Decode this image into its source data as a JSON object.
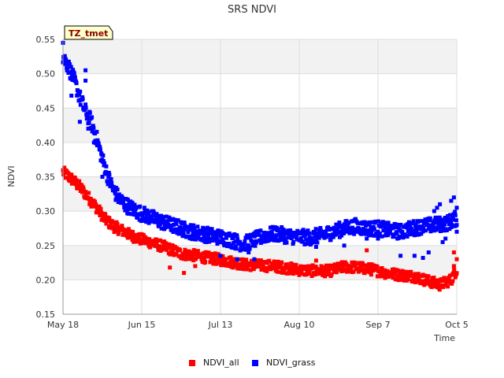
{
  "chart_data": {
    "type": "scatter",
    "title": "SRS NDVI",
    "xlabel": "Time",
    "ylabel": "NDVI",
    "ylim": [
      0.15,
      0.55
    ],
    "xlim": [
      0,
      140
    ],
    "yticks": [
      0.15,
      0.2,
      0.25,
      0.3,
      0.35,
      0.4,
      0.45,
      0.5,
      0.55
    ],
    "ytick_labels": [
      "0.15",
      "0.20",
      "0.25",
      "0.30",
      "0.35",
      "0.40",
      "0.45",
      "0.50",
      "0.55"
    ],
    "xticks": [
      {
        "day": 0,
        "label": "May 18"
      },
      {
        "day": 28,
        "label": "Jun 15"
      },
      {
        "day": 56,
        "label": "Jul 13"
      },
      {
        "day": 84,
        "label": "Aug 10"
      },
      {
        "day": 112,
        "label": "Sep 7"
      },
      {
        "day": 140,
        "label": "Oct 5"
      }
    ],
    "grid": true,
    "legend_position": "bottom-center",
    "badge": "TZ_tmet",
    "series": [
      {
        "name": "NDVI_all",
        "color": "#ff0000",
        "trend": [
          [
            0,
            0.357
          ],
          [
            3,
            0.347
          ],
          [
            6,
            0.335
          ],
          [
            9,
            0.32
          ],
          [
            12,
            0.305
          ],
          [
            15,
            0.288
          ],
          [
            18,
            0.278
          ],
          [
            21,
            0.272
          ],
          [
            24,
            0.265
          ],
          [
            27,
            0.26
          ],
          [
            30,
            0.256
          ],
          [
            33,
            0.252
          ],
          [
            36,
            0.248
          ],
          [
            39,
            0.243
          ],
          [
            42,
            0.238
          ],
          [
            46,
            0.236
          ],
          [
            50,
            0.233
          ],
          [
            55,
            0.23
          ],
          [
            60,
            0.226
          ],
          [
            65,
            0.222
          ],
          [
            70,
            0.221
          ],
          [
            75,
            0.22
          ],
          [
            80,
            0.217
          ],
          [
            85,
            0.214
          ],
          [
            90,
            0.213
          ],
          [
            95,
            0.213
          ],
          [
            100,
            0.219
          ],
          [
            105,
            0.218
          ],
          [
            110,
            0.215
          ],
          [
            115,
            0.21
          ],
          [
            120,
            0.207
          ],
          [
            125,
            0.205
          ],
          [
            130,
            0.198
          ],
          [
            134,
            0.193
          ],
          [
            138,
            0.2
          ],
          [
            140,
            0.215
          ]
        ],
        "spread": 0.008,
        "outliers": [
          [
            38,
            0.218
          ],
          [
            43,
            0.21
          ],
          [
            47,
            0.22
          ],
          [
            65,
            0.225
          ],
          [
            90,
            0.228
          ],
          [
            108,
            0.243
          ],
          [
            139,
            0.24
          ],
          [
            139,
            0.22
          ],
          [
            140,
            0.23
          ]
        ]
      },
      {
        "name": "NDVI_grass",
        "color": "#0000ff",
        "trend": [
          [
            0,
            0.525
          ],
          [
            2,
            0.51
          ],
          [
            4,
            0.49
          ],
          [
            6,
            0.465
          ],
          [
            8,
            0.445
          ],
          [
            10,
            0.43
          ],
          [
            12,
            0.405
          ],
          [
            14,
            0.375
          ],
          [
            16,
            0.35
          ],
          [
            18,
            0.33
          ],
          [
            20,
            0.318
          ],
          [
            22,
            0.31
          ],
          [
            24,
            0.305
          ],
          [
            27,
            0.298
          ],
          [
            30,
            0.293
          ],
          [
            33,
            0.288
          ],
          [
            36,
            0.283
          ],
          [
            40,
            0.278
          ],
          [
            44,
            0.272
          ],
          [
            48,
            0.268
          ],
          [
            52,
            0.265
          ],
          [
            56,
            0.262
          ],
          [
            60,
            0.258
          ],
          [
            64,
            0.252
          ],
          [
            68,
            0.258
          ],
          [
            72,
            0.265
          ],
          [
            76,
            0.267
          ],
          [
            80,
            0.264
          ],
          [
            84,
            0.262
          ],
          [
            88,
            0.262
          ],
          [
            92,
            0.265
          ],
          [
            96,
            0.27
          ],
          [
            100,
            0.275
          ],
          [
            104,
            0.278
          ],
          [
            108,
            0.275
          ],
          [
            112,
            0.275
          ],
          [
            116,
            0.272
          ],
          [
            120,
            0.27
          ],
          [
            124,
            0.275
          ],
          [
            128,
            0.278
          ],
          [
            132,
            0.28
          ],
          [
            136,
            0.282
          ],
          [
            138,
            0.285
          ],
          [
            140,
            0.29
          ]
        ],
        "spread": 0.011,
        "outliers": [
          [
            0,
            0.545
          ],
          [
            3,
            0.468
          ],
          [
            6,
            0.43
          ],
          [
            8,
            0.49
          ],
          [
            8,
            0.505
          ],
          [
            9,
            0.42
          ],
          [
            11,
            0.4
          ],
          [
            14,
            0.35
          ],
          [
            56,
            0.235
          ],
          [
            62,
            0.23
          ],
          [
            66,
            0.24
          ],
          [
            68,
            0.23
          ],
          [
            90,
            0.248
          ],
          [
            100,
            0.25
          ],
          [
            108,
            0.26
          ],
          [
            112,
            0.26
          ],
          [
            120,
            0.235
          ],
          [
            125,
            0.235
          ],
          [
            128,
            0.232
          ],
          [
            130,
            0.24
          ],
          [
            132,
            0.3
          ],
          [
            133,
            0.305
          ],
          [
            134,
            0.31
          ],
          [
            135,
            0.255
          ],
          [
            136,
            0.26
          ],
          [
            137,
            0.288
          ],
          [
            138,
            0.315
          ],
          [
            139,
            0.32
          ],
          [
            140,
            0.305
          ],
          [
            140,
            0.27
          ]
        ]
      }
    ]
  }
}
